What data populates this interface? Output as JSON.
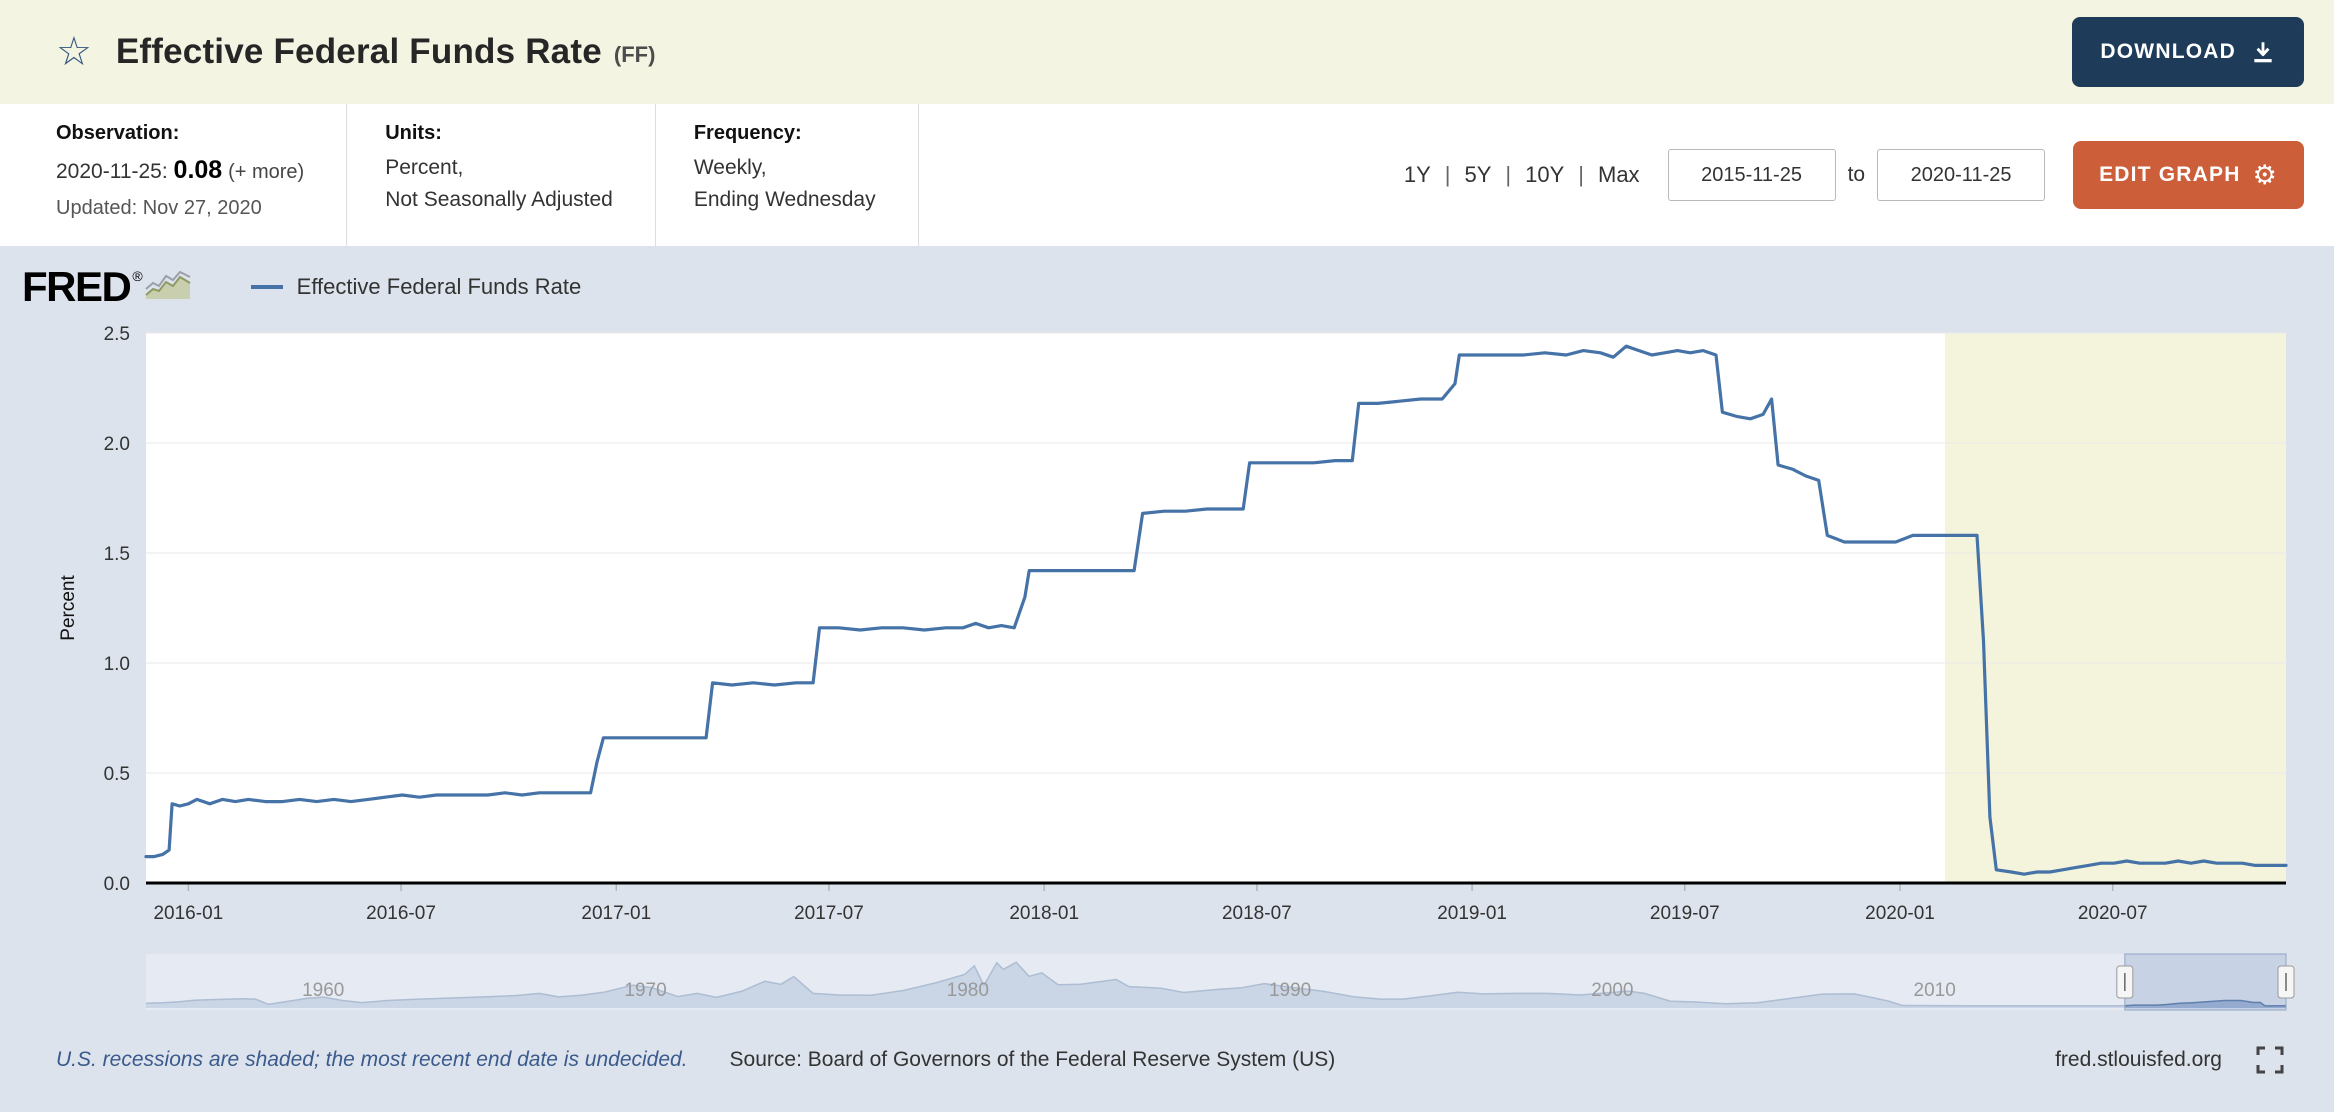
{
  "header": {
    "star_icon": "☆",
    "title": "Effective Federal Funds Rate",
    "ticker": "(FF)",
    "download_label": "DOWNLOAD"
  },
  "meta": {
    "observation": {
      "label": "Observation:",
      "date": "2020-11-25:",
      "value": "0.08",
      "more_label": "(+ more)",
      "updated": "Updated: Nov 27, 2020"
    },
    "units": {
      "label": "Units:",
      "line1": "Percent,",
      "line2": "Not Seasonally Adjusted"
    },
    "frequency": {
      "label": "Frequency:",
      "line1": "Weekly,",
      "line2": "Ending Wednesday"
    },
    "ranges": [
      "1Y",
      "5Y",
      "10Y",
      "Max"
    ],
    "range_separator": "|",
    "date_from": "2015-11-25",
    "to_label": "to",
    "date_to": "2020-11-25",
    "edit_graph_label": "EDIT GRAPH",
    "edit_gear": "⚙"
  },
  "graph": {
    "logo": "FRED",
    "logo_reg": "®",
    "legend_label": "Effective Federal Funds Rate"
  },
  "footer": {
    "recession_note": "U.S. recessions are shaded; the most recent end date is undecided.",
    "source": "Source: Board of Governors of the Federal Reserve System (US)",
    "site": "fred.stlouisfed.org"
  },
  "colors": {
    "header_bg": "#f3f4e2",
    "panel_bg": "#dde3ed",
    "download_button": "#1e3c59",
    "edit_button": "#cd5e3a",
    "series_line": "#4572a7",
    "recession_band": "#f4f4dd",
    "navigator_fill": "#9fb4d2",
    "navigator_stroke": "#5f7fa8"
  },
  "chart_data": {
    "type": "line",
    "title": "Effective Federal Funds Rate",
    "ylabel": "Percent",
    "xlabel": "",
    "legend_position": "top-left",
    "grid": true,
    "series_color": "#4572a7",
    "x_domain": [
      2015.901,
      2020.902
    ],
    "y_domain": [
      0,
      2.5
    ],
    "y_ticks": [
      "0.0",
      "0.5",
      "1.0",
      "1.5",
      "2.0",
      "2.5"
    ],
    "x_ticks": [
      {
        "label": "2016-01",
        "x": 2016.0
      },
      {
        "label": "2016-07",
        "x": 2016.497
      },
      {
        "label": "2017-01",
        "x": 2017.0
      },
      {
        "label": "2017-07",
        "x": 2017.497
      },
      {
        "label": "2018-01",
        "x": 2018.0
      },
      {
        "label": "2018-07",
        "x": 2018.497
      },
      {
        "label": "2019-01",
        "x": 2019.0
      },
      {
        "label": "2019-07",
        "x": 2019.497
      },
      {
        "label": "2020-01",
        "x": 2020.0
      },
      {
        "label": "2020-07",
        "x": 2020.497
      }
    ],
    "recession_band": {
      "start": 2020.105,
      "end": 2020.902,
      "color": "#f4f4dd"
    },
    "points": [
      [
        2015.901,
        0.12
      ],
      [
        2015.92,
        0.12
      ],
      [
        2015.94,
        0.13
      ],
      [
        2015.955,
        0.15
      ],
      [
        2015.962,
        0.36
      ],
      [
        2015.98,
        0.35
      ],
      [
        2016.0,
        0.36
      ],
      [
        2016.02,
        0.38
      ],
      [
        2016.05,
        0.36
      ],
      [
        2016.08,
        0.38
      ],
      [
        2016.11,
        0.37
      ],
      [
        2016.14,
        0.38
      ],
      [
        2016.18,
        0.37
      ],
      [
        2016.22,
        0.37
      ],
      [
        2016.26,
        0.38
      ],
      [
        2016.3,
        0.37
      ],
      [
        2016.34,
        0.38
      ],
      [
        2016.38,
        0.37
      ],
      [
        2016.42,
        0.38
      ],
      [
        2016.46,
        0.39
      ],
      [
        2016.5,
        0.4
      ],
      [
        2016.54,
        0.39
      ],
      [
        2016.58,
        0.4
      ],
      [
        2016.62,
        0.4
      ],
      [
        2016.66,
        0.4
      ],
      [
        2016.7,
        0.4
      ],
      [
        2016.74,
        0.41
      ],
      [
        2016.78,
        0.4
      ],
      [
        2016.82,
        0.41
      ],
      [
        2016.86,
        0.41
      ],
      [
        2016.9,
        0.41
      ],
      [
        2016.94,
        0.41
      ],
      [
        2016.955,
        0.55
      ],
      [
        2016.97,
        0.66
      ],
      [
        2017.02,
        0.66
      ],
      [
        2017.07,
        0.66
      ],
      [
        2017.12,
        0.66
      ],
      [
        2017.17,
        0.66
      ],
      [
        2017.21,
        0.66
      ],
      [
        2017.225,
        0.91
      ],
      [
        2017.27,
        0.9
      ],
      [
        2017.32,
        0.91
      ],
      [
        2017.37,
        0.9
      ],
      [
        2017.42,
        0.91
      ],
      [
        2017.46,
        0.91
      ],
      [
        2017.475,
        1.16
      ],
      [
        2017.52,
        1.16
      ],
      [
        2017.57,
        1.15
      ],
      [
        2017.62,
        1.16
      ],
      [
        2017.67,
        1.16
      ],
      [
        2017.72,
        1.15
      ],
      [
        2017.77,
        1.16
      ],
      [
        2017.81,
        1.16
      ],
      [
        2017.84,
        1.18
      ],
      [
        2017.87,
        1.16
      ],
      [
        2017.9,
        1.17
      ],
      [
        2017.93,
        1.16
      ],
      [
        2017.955,
        1.3
      ],
      [
        2017.965,
        1.42
      ],
      [
        2018.01,
        1.42
      ],
      [
        2018.06,
        1.42
      ],
      [
        2018.11,
        1.42
      ],
      [
        2018.16,
        1.42
      ],
      [
        2018.21,
        1.42
      ],
      [
        2018.23,
        1.68
      ],
      [
        2018.28,
        1.69
      ],
      [
        2018.33,
        1.69
      ],
      [
        2018.38,
        1.7
      ],
      [
        2018.43,
        1.7
      ],
      [
        2018.465,
        1.7
      ],
      [
        2018.48,
        1.91
      ],
      [
        2018.53,
        1.91
      ],
      [
        2018.58,
        1.91
      ],
      [
        2018.63,
        1.91
      ],
      [
        2018.68,
        1.92
      ],
      [
        2018.72,
        1.92
      ],
      [
        2018.735,
        2.18
      ],
      [
        2018.78,
        2.18
      ],
      [
        2018.83,
        2.19
      ],
      [
        2018.88,
        2.2
      ],
      [
        2018.93,
        2.2
      ],
      [
        2018.96,
        2.27
      ],
      [
        2018.97,
        2.4
      ],
      [
        2019.02,
        2.4
      ],
      [
        2019.07,
        2.4
      ],
      [
        2019.12,
        2.4
      ],
      [
        2019.17,
        2.41
      ],
      [
        2019.22,
        2.4
      ],
      [
        2019.26,
        2.42
      ],
      [
        2019.3,
        2.41
      ],
      [
        2019.33,
        2.39
      ],
      [
        2019.36,
        2.44
      ],
      [
        2019.39,
        2.42
      ],
      [
        2019.42,
        2.4
      ],
      [
        2019.45,
        2.41
      ],
      [
        2019.48,
        2.42
      ],
      [
        2019.51,
        2.41
      ],
      [
        2019.54,
        2.42
      ],
      [
        2019.57,
        2.4
      ],
      [
        2019.585,
        2.14
      ],
      [
        2019.62,
        2.12
      ],
      [
        2019.65,
        2.11
      ],
      [
        2019.68,
        2.13
      ],
      [
        2019.7,
        2.2
      ],
      [
        2019.715,
        1.9
      ],
      [
        2019.75,
        1.88
      ],
      [
        2019.78,
        1.85
      ],
      [
        2019.81,
        1.83
      ],
      [
        2019.83,
        1.58
      ],
      [
        2019.87,
        1.55
      ],
      [
        2019.91,
        1.55
      ],
      [
        2019.95,
        1.55
      ],
      [
        2019.99,
        1.55
      ],
      [
        2020.03,
        1.58
      ],
      [
        2020.07,
        1.58
      ],
      [
        2020.11,
        1.58
      ],
      [
        2020.15,
        1.58
      ],
      [
        2020.18,
        1.58
      ],
      [
        2020.195,
        1.1
      ],
      [
        2020.21,
        0.3
      ],
      [
        2020.225,
        0.06
      ],
      [
        2020.26,
        0.05
      ],
      [
        2020.29,
        0.04
      ],
      [
        2020.32,
        0.05
      ],
      [
        2020.35,
        0.05
      ],
      [
        2020.38,
        0.06
      ],
      [
        2020.41,
        0.07
      ],
      [
        2020.44,
        0.08
      ],
      [
        2020.47,
        0.09
      ],
      [
        2020.5,
        0.09
      ],
      [
        2020.53,
        0.1
      ],
      [
        2020.56,
        0.09
      ],
      [
        2020.59,
        0.09
      ],
      [
        2020.62,
        0.09
      ],
      [
        2020.65,
        0.1
      ],
      [
        2020.68,
        0.09
      ],
      [
        2020.71,
        0.1
      ],
      [
        2020.74,
        0.09
      ],
      [
        2020.77,
        0.09
      ],
      [
        2020.8,
        0.09
      ],
      [
        2020.83,
        0.08
      ],
      [
        2020.86,
        0.08
      ],
      [
        2020.89,
        0.08
      ],
      [
        2020.902,
        0.08
      ]
    ],
    "navigator": {
      "x_domain": [
        1954.5,
        2020.902
      ],
      "y_domain": [
        0,
        21
      ],
      "decade_ticks": [
        1960,
        1970,
        1980,
        1990,
        2000,
        2010
      ],
      "selected_range": [
        2015.901,
        2020.902
      ],
      "points": [
        [
          1954.5,
          1.2
        ],
        [
          1955,
          1.4
        ],
        [
          1955.5,
          1.8
        ],
        [
          1956,
          2.5
        ],
        [
          1956.8,
          2.9
        ],
        [
          1957.5,
          3.2
        ],
        [
          1957.9,
          3.0
        ],
        [
          1958.3,
          0.7
        ],
        [
          1958.8,
          1.8
        ],
        [
          1959.5,
          3.4
        ],
        [
          1960,
          3.9
        ],
        [
          1960.6,
          2.4
        ],
        [
          1961.2,
          1.5
        ],
        [
          1962,
          2.4
        ],
        [
          1963,
          3.0
        ],
        [
          1964,
          3.5
        ],
        [
          1965,
          4.0
        ],
        [
          1966,
          4.6
        ],
        [
          1966.7,
          5.5
        ],
        [
          1967.3,
          4.0
        ],
        [
          1968,
          4.7
        ],
        [
          1968.7,
          6.0
        ],
        [
          1969.6,
          9.1
        ],
        [
          1970.2,
          8.0
        ],
        [
          1971,
          4.1
        ],
        [
          1971.6,
          5.5
        ],
        [
          1972.2,
          3.8
        ],
        [
          1973,
          6.5
        ],
        [
          1973.7,
          10.8
        ],
        [
          1974.2,
          9.5
        ],
        [
          1974.6,
          12.9
        ],
        [
          1975.2,
          5.5
        ],
        [
          1976,
          4.8
        ],
        [
          1977,
          4.7
        ],
        [
          1978,
          6.8
        ],
        [
          1979,
          10.1
        ],
        [
          1979.9,
          13.8
        ],
        [
          1980.2,
          17.6
        ],
        [
          1980.5,
          9.0
        ],
        [
          1980.9,
          18.9
        ],
        [
          1981.1,
          16.0
        ],
        [
          1981.5,
          19.1
        ],
        [
          1981.9,
          13.0
        ],
        [
          1982.3,
          14.5
        ],
        [
          1982.8,
          9.3
        ],
        [
          1983.5,
          9.5
        ],
        [
          1984.6,
          11.6
        ],
        [
          1985,
          8.5
        ],
        [
          1986,
          7.8
        ],
        [
          1986.7,
          5.9
        ],
        [
          1987.8,
          7.3
        ],
        [
          1988.5,
          8.0
        ],
        [
          1989.2,
          9.8
        ],
        [
          1990,
          8.2
        ],
        [
          1991,
          6.5
        ],
        [
          1992,
          4.0
        ],
        [
          1992.8,
          3.0
        ],
        [
          1993.5,
          3.0
        ],
        [
          1994.5,
          4.7
        ],
        [
          1995.2,
          6.0
        ],
        [
          1996,
          5.3
        ],
        [
          1997,
          5.5
        ],
        [
          1998,
          5.5
        ],
        [
          1999,
          4.8
        ],
        [
          2000.5,
          6.5
        ],
        [
          2001,
          5.5
        ],
        [
          2001.8,
          2.1
        ],
        [
          2002.5,
          1.8
        ],
        [
          2003.5,
          1.0
        ],
        [
          2004.5,
          1.4
        ],
        [
          2005.5,
          3.3
        ],
        [
          2006.5,
          5.2
        ],
        [
          2007.5,
          5.3
        ],
        [
          2008,
          3.9
        ],
        [
          2008.6,
          2.0
        ],
        [
          2009,
          0.2
        ],
        [
          2010,
          0.18
        ],
        [
          2011,
          0.1
        ],
        [
          2012,
          0.14
        ],
        [
          2013,
          0.11
        ],
        [
          2014,
          0.09
        ],
        [
          2015,
          0.13
        ],
        [
          2015.9,
          0.12
        ],
        [
          2016.2,
          0.38
        ],
        [
          2016.9,
          0.41
        ],
        [
          2017.2,
          0.66
        ],
        [
          2017.6,
          1.16
        ],
        [
          2018,
          1.42
        ],
        [
          2018.5,
          1.91
        ],
        [
          2019,
          2.4
        ],
        [
          2019.5,
          2.4
        ],
        [
          2019.9,
          1.55
        ],
        [
          2020.1,
          1.58
        ],
        [
          2020.25,
          0.05
        ],
        [
          2020.9,
          0.08
        ]
      ]
    }
  }
}
